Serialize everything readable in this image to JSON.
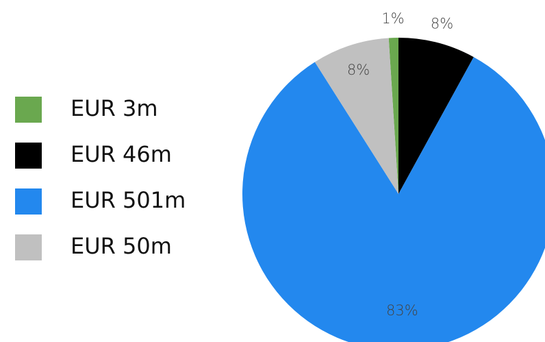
{
  "chart_data": {
    "type": "pie",
    "categories": [
      "EUR 3m",
      "EUR 46m",
      "EUR 501m",
      "EUR 50m"
    ],
    "values": [
      1,
      8,
      83,
      8
    ],
    "value_labels": [
      "1%",
      "8%",
      "83%",
      "8%"
    ],
    "colors": [
      "#6aa84f",
      "#000000",
      "#2388ee",
      "#c0c0c0"
    ],
    "legend": "left"
  }
}
